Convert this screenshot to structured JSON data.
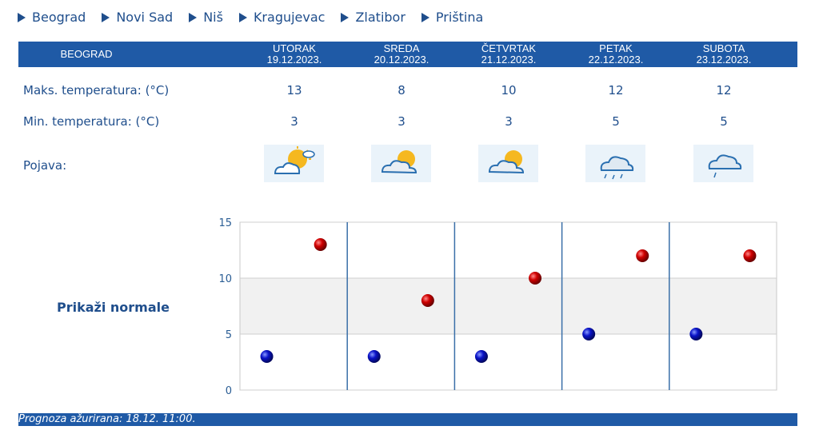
{
  "nav": [
    "Beograd",
    "Novi Sad",
    "Niš",
    "Kragujevac",
    "Zlatibor",
    "Priština"
  ],
  "city": "BEOGRAD",
  "days": [
    {
      "day": "UTORAK",
      "date": "19.12.2023.",
      "max": "13",
      "min": "3",
      "icon": "sun-cloud-icon"
    },
    {
      "day": "SREDA",
      "date": "20.12.2023.",
      "max": "8",
      "min": "3",
      "icon": "cloud-sun-icon"
    },
    {
      "day": "ČETVRTAK",
      "date": "21.12.2023.",
      "max": "10",
      "min": "3",
      "icon": "cloud-sun-icon"
    },
    {
      "day": "PETAK",
      "date": "22.12.2023.",
      "max": "12",
      "min": "5",
      "icon": "cloud-rain-icon"
    },
    {
      "day": "SUBOTA",
      "date": "23.12.2023.",
      "max": "12",
      "min": "5",
      "icon": "cloud-drizzle-icon"
    }
  ],
  "labels": {
    "max": "Maks. temperatura: (°C)",
    "min": "Min. temperatura: (°C)",
    "phenomenon": "Pojava:"
  },
  "normals_link": "Prikaži normale",
  "footer": "Prognoza ažurirana:  18.12. 11:00.",
  "colors": {
    "bar": "#1f5aa6",
    "text": "#1f4e8c",
    "max_dot": "#c00000",
    "min_dot": "#0a13b4"
  },
  "chart_data": {
    "type": "scatter",
    "categories": [
      "19.12.2023.",
      "20.12.2023.",
      "21.12.2023.",
      "22.12.2023.",
      "23.12.2023."
    ],
    "series": [
      {
        "values": [
          13,
          8,
          10,
          12,
          12
        ]
      },
      {
        "values": [
          3,
          3,
          3,
          5,
          5
        ]
      }
    ],
    "ylim": [
      0,
      15
    ],
    "yticks": [
      0,
      5,
      10,
      15
    ],
    "grid": true
  }
}
